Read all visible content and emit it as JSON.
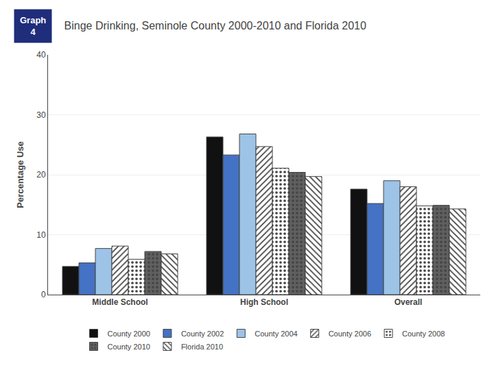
{
  "chart_data": {
    "type": "bar",
    "title": "Binge Drinking, Seminole County 2000-2010 and Florida 2010",
    "annotations": [
      "Graph\n4"
    ],
    "ylabel": "Percentage Use",
    "categories": [
      "Middle School",
      "High School",
      "Overall"
    ],
    "series": [
      {
        "name": "County 2000",
        "color": "#111111",
        "values": [
          4.7,
          26.3,
          17.6
        ]
      },
      {
        "name": "County 2002",
        "color": "#4472c4",
        "values": [
          5.3,
          23.3,
          15.2
        ]
      },
      {
        "name": "County 2004",
        "color": "#9dc3e6",
        "values": [
          7.7,
          26.8,
          19.0
        ]
      },
      {
        "name": "County 2006",
        "color": "white",
        "values": [
          8.1,
          24.7,
          18.0
        ]
      },
      {
        "name": "County 2008",
        "color": "white",
        "values": [
          5.9,
          21.1,
          14.8
        ]
      },
      {
        "name": "County 2010",
        "color": "#606060",
        "values": [
          7.2,
          20.4,
          14.9
        ]
      },
      {
        "name": "Florida 2010",
        "color": "white",
        "values": [
          6.8,
          19.7,
          14.3
        ]
      }
    ],
    "ylim": [
      0,
      40
    ],
    "yticks": [
      0,
      10,
      20,
      30,
      40
    ],
    "grid": true,
    "legend": "bottom"
  }
}
